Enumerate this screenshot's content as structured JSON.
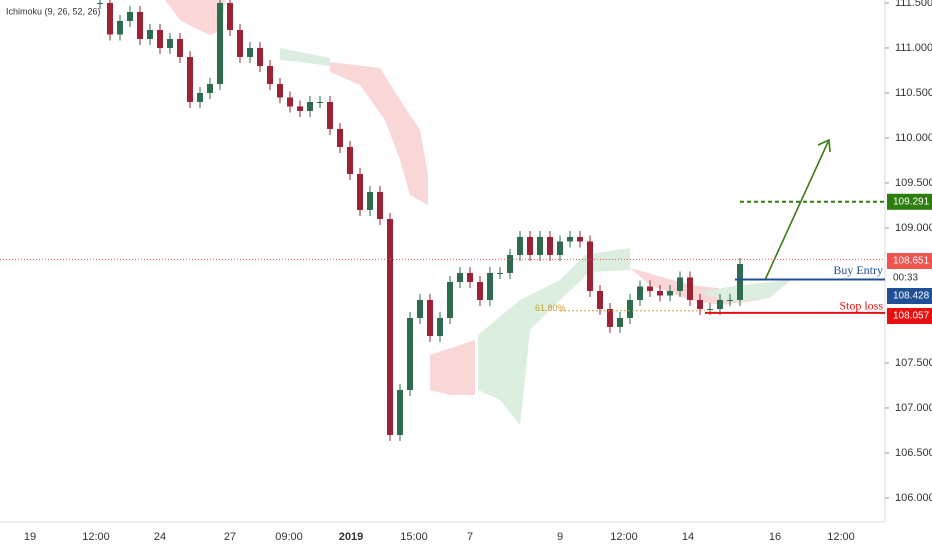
{
  "chart_data": {
    "type": "candlestick",
    "indicator": "Ichimoku (9, 26, 52, 26)",
    "closes": [
      111.5,
      111.15,
      111.3,
      111.4,
      111.1,
      111.2,
      111.0,
      111.1,
      110.9,
      110.4,
      110.5,
      110.6,
      111.5,
      111.2,
      110.9,
      111.0,
      110.8,
      110.6,
      110.45,
      110.35,
      110.3,
      110.4,
      110.4,
      110.1,
      109.9,
      109.6,
      109.2,
      109.4,
      109.1,
      106.7,
      107.2,
      108.0,
      108.2,
      107.8,
      108.0,
      108.4,
      108.5,
      108.4,
      108.2,
      108.5,
      108.5,
      108.7,
      108.9,
      108.7,
      108.9,
      108.7,
      108.85,
      108.9,
      108.85,
      108.3,
      108.1,
      107.9,
      108.0,
      108.2,
      108.35,
      108.3,
      108.25,
      108.3,
      108.45,
      108.2,
      108.1,
      108.1,
      108.2,
      108.2,
      108.6
    ],
    "up_color": "#2e6b4f",
    "down_color": "#9b2335",
    "ylim": [
      105.733,
      111.533
    ],
    "yticks": [
      {
        "value": 111.5,
        "label": "111.500"
      },
      {
        "value": 111,
        "label": "111.000"
      },
      {
        "value": 110.5,
        "label": "110.500"
      },
      {
        "value": 110,
        "label": "110.000"
      },
      {
        "value": 109.5,
        "label": "109.500"
      },
      {
        "value": 109,
        "label": "109.000"
      },
      {
        "value": 107.5,
        "label": "107.500"
      },
      {
        "value": 107,
        "label": "107.000"
      },
      {
        "value": 106.5,
        "label": "106.500"
      },
      {
        "value": 106,
        "label": "106.000"
      }
    ],
    "x_labels": [
      "19",
      "12:00",
      "24",
      "27",
      "09:00",
      "2019",
      "15:00",
      "7",
      "9",
      "12:00",
      "14",
      "16",
      "12:00"
    ],
    "last_price": {
      "value": 108.651,
      "color": "#ef5350"
    },
    "countdown": "00:33",
    "target": {
      "value": 109.291,
      "color": "#2e7d0f"
    },
    "buy_entry": {
      "name": "Buy Entry",
      "value": 108.428,
      "color": "#1f4f96"
    },
    "stop_loss": {
      "name": "Stop loss",
      "value": 108.057,
      "color": "#e8100f"
    },
    "fib": {
      "label": "61.80%",
      "value": 108.08,
      "color": "#c8a032"
    }
  }
}
